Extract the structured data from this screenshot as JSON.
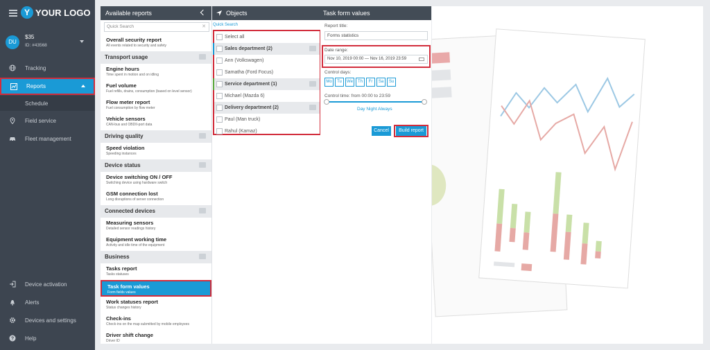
{
  "app": {
    "logo": "YOUR LOGO",
    "logo_letter": "Y"
  },
  "user": {
    "initials": "DU",
    "balance": "$35",
    "id": "ID: #43568"
  },
  "sidebar": {
    "items": [
      {
        "label": "Tracking",
        "icon": "globe-icon"
      },
      {
        "label": "Reports",
        "icon": "chart-icon"
      },
      {
        "label": "Schedule",
        "icon": ""
      },
      {
        "label": "Field service",
        "icon": "pin-icon"
      },
      {
        "label": "Fleet management",
        "icon": "car-icon"
      }
    ],
    "bottom": [
      {
        "label": "Device activation",
        "icon": "login-icon"
      },
      {
        "label": "Alerts",
        "icon": "bell-icon"
      },
      {
        "label": "Devices and settings",
        "icon": "gear-icon"
      },
      {
        "label": "Help",
        "icon": "help-icon"
      }
    ]
  },
  "reports_panel": {
    "title": "Available reports",
    "search_placeholder": "Quick Search",
    "top_item": {
      "title": "Overall security report",
      "desc": "All events related to security and safety"
    },
    "categories": [
      {
        "name": "Transport usage",
        "items": [
          {
            "title": "Engine hours",
            "desc": "Time spent in motion and on idling"
          },
          {
            "title": "Fuel volume",
            "desc": "Fuel refills, drains, consumption (based on level sensor)"
          },
          {
            "title": "Flow meter report",
            "desc": "Fuel consumption by flow meter"
          },
          {
            "title": "Vehicle sensors",
            "desc": "CAN-bus and OBDII-port data"
          }
        ]
      },
      {
        "name": "Driving quality",
        "items": [
          {
            "title": "Speed violation",
            "desc": "Speeding instances"
          }
        ]
      },
      {
        "name": "Device status",
        "items": [
          {
            "title": "Device switching ON / OFF",
            "desc": "Switching device using hardware switch"
          },
          {
            "title": "GSM connection lost",
            "desc": "Long disruptions of server connection"
          }
        ]
      },
      {
        "name": "Connected devices",
        "items": [
          {
            "title": "Measuring sensors",
            "desc": "Detailed sensor readings history"
          },
          {
            "title": "Equipment working time",
            "desc": "Activity and idle time of the equipment"
          }
        ]
      },
      {
        "name": "Business",
        "items": [
          {
            "title": "Tasks report",
            "desc": "Tasks statuses"
          },
          {
            "title": "Task form values",
            "desc": "Form fields values"
          },
          {
            "title": "Work statuses report",
            "desc": "Status changes history"
          },
          {
            "title": "Check-ins",
            "desc": "Check-ins on the map submitted by mobile employees"
          },
          {
            "title": "Driver shift change",
            "desc": "Driver ID"
          }
        ]
      }
    ]
  },
  "objects_panel": {
    "title": "Objects",
    "search": "Quick Search",
    "rows": [
      {
        "label": "Select all",
        "group": false,
        "color": ""
      },
      {
        "label": "Sales department (2)",
        "group": true,
        "color": "#1a9ad6"
      },
      {
        "label": "Ann (Volkswagen)",
        "group": false,
        "color": ""
      },
      {
        "label": "Samatha (Ford Focus)",
        "group": false,
        "color": ""
      },
      {
        "label": "Service department (1)",
        "group": true,
        "color": "#5aa83c"
      },
      {
        "label": "Michael (Mazda 6)",
        "group": false,
        "color": ""
      },
      {
        "label": "Delivery department (2)",
        "group": true,
        "color": "#d22c3b"
      },
      {
        "label": "Paul (Man truck)",
        "group": false,
        "color": ""
      },
      {
        "label": "Rahul (Kamaz)",
        "group": false,
        "color": ""
      }
    ]
  },
  "task_panel": {
    "title": "Task form values",
    "report_title_label": "Report title:",
    "report_title_value": "Forms statistics",
    "date_range_label": "Date range:",
    "date_range_value": "Nov 10, 2019 00:00 — Nov 16, 2019 23:59",
    "control_days_label": "Control days:",
    "days": [
      "Mo",
      "Tu",
      "We",
      "Th",
      "Fr",
      "Sa",
      "Su"
    ],
    "control_time_label": "Control time: from 00:00 to 23:59",
    "day_night": "Day  Night  Always",
    "cancel": "Cancel",
    "build": "Build report"
  },
  "colors": {
    "accent": "#1a9ad6",
    "sidebar": "#3d4550",
    "highlight": "#d22c3b"
  }
}
